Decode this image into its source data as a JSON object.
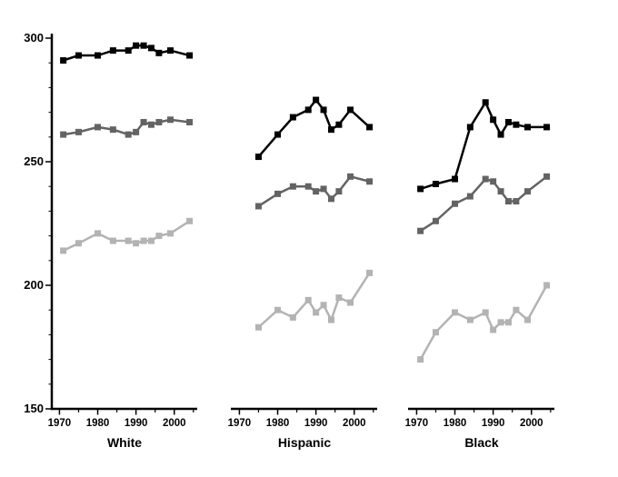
{
  "chart_data": {
    "type": "line",
    "title": "",
    "xlabel": "",
    "ylabel": "",
    "xlim": [
      1968,
      2006
    ],
    "ylim": [
      150,
      300
    ],
    "x_ticks": [
      1970,
      1980,
      1990,
      2000
    ],
    "x_minor_ticks": [
      1975,
      1985,
      1995,
      2005
    ],
    "y_ticks": [
      150,
      200,
      250,
      300
    ],
    "y_minor_ticks": [
      160,
      170,
      180,
      190,
      210,
      220,
      230,
      240,
      260,
      270,
      280,
      290
    ],
    "grid": false,
    "legend": "none",
    "marker": "square",
    "axis_color": "#000000",
    "panels": [
      {
        "label": "White",
        "series": [
          {
            "name": "black",
            "color": "#000000",
            "x": [
              1971,
              1975,
              1980,
              1984,
              1988,
              1990,
              1992,
              1994,
              1996,
              1999,
              2004
            ],
            "y": [
              291,
              293,
              293,
              295,
              295,
              297,
              297,
              296,
              294,
              295,
              293
            ]
          },
          {
            "name": "dark-gray",
            "color": "#636363",
            "x": [
              1971,
              1975,
              1980,
              1984,
              1988,
              1990,
              1992,
              1994,
              1996,
              1999,
              2004
            ],
            "y": [
              261,
              262,
              264,
              263,
              261,
              262,
              266,
              265,
              266,
              267,
              266
            ]
          },
          {
            "name": "light-gray",
            "color": "#b3b3b3",
            "x": [
              1971,
              1975,
              1980,
              1984,
              1988,
              1990,
              1992,
              1994,
              1996,
              1999,
              2004
            ],
            "y": [
              214,
              217,
              221,
              218,
              218,
              217,
              218,
              218,
              220,
              221,
              226
            ]
          }
        ]
      },
      {
        "label": "Hispanic",
        "series": [
          {
            "name": "black",
            "color": "#000000",
            "x": [
              1975,
              1980,
              1984,
              1988,
              1990,
              1992,
              1994,
              1996,
              1999,
              2004
            ],
            "y": [
              252,
              261,
              268,
              271,
              275,
              271,
              263,
              265,
              271,
              264
            ]
          },
          {
            "name": "dark-gray",
            "color": "#636363",
            "x": [
              1975,
              1980,
              1984,
              1988,
              1990,
              1992,
              1994,
              1996,
              1999,
              2004
            ],
            "y": [
              232,
              237,
              240,
              240,
              238,
              239,
              235,
              238,
              244,
              242
            ]
          },
          {
            "name": "light-gray",
            "color": "#b3b3b3",
            "x": [
              1975,
              1980,
              1984,
              1988,
              1990,
              1992,
              1994,
              1996,
              1999,
              2004
            ],
            "y": [
              183,
              190,
              187,
              194,
              189,
              192,
              186,
              195,
              193,
              205
            ]
          }
        ]
      },
      {
        "label": "Black",
        "series": [
          {
            "name": "black",
            "color": "#000000",
            "x": [
              1971,
              1975,
              1980,
              1984,
              1988,
              1990,
              1992,
              1994,
              1996,
              1999,
              2004
            ],
            "y": [
              239,
              241,
              243,
              264,
              274,
              267,
              261,
              266,
              265,
              264,
              264
            ]
          },
          {
            "name": "dark-gray",
            "color": "#636363",
            "x": [
              1971,
              1975,
              1980,
              1984,
              1988,
              1990,
              1992,
              1994,
              1996,
              1999,
              2004
            ],
            "y": [
              222,
              226,
              233,
              236,
              243,
              242,
              238,
              234,
              234,
              238,
              244
            ]
          },
          {
            "name": "light-gray",
            "color": "#b3b3b3",
            "x": [
              1971,
              1975,
              1980,
              1984,
              1988,
              1990,
              1992,
              1994,
              1996,
              1999,
              2004
            ],
            "y": [
              170,
              181,
              189,
              186,
              189,
              182,
              185,
              185,
              190,
              186,
              200
            ]
          }
        ]
      }
    ]
  }
}
